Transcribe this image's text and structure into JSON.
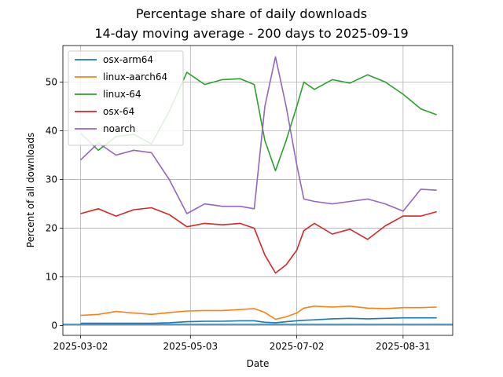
{
  "chart_data": {
    "type": "line",
    "title": "Percentage share of daily downloads",
    "subtitle": "14-day moving average - 200 days to 2025-09-19",
    "xlabel": "Date",
    "ylabel": "Percent of all downloads",
    "xlim": [
      "2025-02-20",
      "2025-09-28"
    ],
    "ylim": [
      -2,
      57.5
    ],
    "x_ticks": [
      "2025-03-02",
      "2025-05-03",
      "2025-07-02",
      "2025-08-31"
    ],
    "y_ticks": [
      0,
      10,
      20,
      30,
      40,
      50
    ],
    "grid": true,
    "legend_position": "top-left",
    "x": [
      "2025-03-02",
      "2025-03-12",
      "2025-03-22",
      "2025-04-01",
      "2025-04-11",
      "2025-04-21",
      "2025-05-01",
      "2025-05-11",
      "2025-05-21",
      "2025-05-31",
      "2025-06-08",
      "2025-06-14",
      "2025-06-20",
      "2025-06-26",
      "2025-07-02",
      "2025-07-06",
      "2025-07-12",
      "2025-07-22",
      "2025-08-01",
      "2025-08-11",
      "2025-08-21",
      "2025-08-31",
      "2025-09-10",
      "2025-09-19"
    ],
    "series": [
      {
        "name": "osx-arm64",
        "color": "#1f77b4",
        "values": [
          0.5,
          0.5,
          0.5,
          0.5,
          0.5,
          0.6,
          0.8,
          0.9,
          0.9,
          1.0,
          1.0,
          0.7,
          0.6,
          0.8,
          1.0,
          1.1,
          1.2,
          1.4,
          1.5,
          1.4,
          1.5,
          1.6,
          1.6,
          1.6
        ]
      },
      {
        "name": "linux-aarch64",
        "color": "#ff7f0e",
        "values": [
          2.1,
          2.3,
          2.9,
          2.6,
          2.3,
          2.7,
          3.0,
          3.1,
          3.1,
          3.3,
          3.5,
          2.7,
          1.3,
          1.8,
          2.6,
          3.6,
          4.0,
          3.8,
          4.0,
          3.6,
          3.5,
          3.7,
          3.7,
          3.8
        ]
      },
      {
        "name": "linux-64",
        "color": "#2ca02c",
        "values": [
          39.5,
          36.0,
          38.8,
          39.3,
          37.3,
          44.0,
          52.0,
          49.5,
          50.5,
          50.7,
          49.5,
          38.0,
          31.8,
          38.0,
          45.0,
          50.0,
          48.5,
          50.5,
          49.8,
          51.5,
          50.0,
          47.5,
          44.5,
          43.3
        ]
      },
      {
        "name": "osx-64",
        "color": "#d62728",
        "values": [
          23.0,
          24.0,
          22.5,
          23.8,
          24.2,
          22.8,
          20.3,
          21.0,
          20.7,
          21.0,
          20.0,
          14.5,
          10.8,
          12.5,
          15.5,
          19.5,
          21.0,
          18.8,
          19.8,
          17.7,
          20.5,
          22.5,
          22.5,
          23.4
        ]
      },
      {
        "name": "noarch",
        "color": "#9467bd",
        "values": [
          34.0,
          37.5,
          35.0,
          36.0,
          35.5,
          30.0,
          23.0,
          25.0,
          24.5,
          24.5,
          24.0,
          45.0,
          55.2,
          45.0,
          33.0,
          26.0,
          25.5,
          25.0,
          25.5,
          26.0,
          25.0,
          23.5,
          28.0,
          27.8
        ]
      }
    ]
  }
}
